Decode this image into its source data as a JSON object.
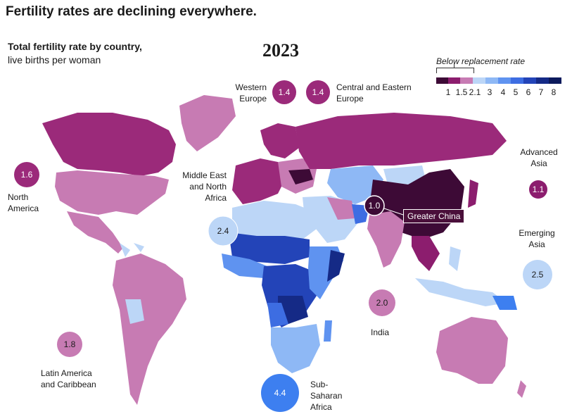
{
  "title": "Fertility rates are declining everywhere.",
  "subtitle_bold": "Total fertility rate by country,",
  "subtitle_regular": "live births per woman",
  "year": "2023",
  "legend": {
    "note": "Below replacement rate",
    "breaks": [
      "1",
      "1.5",
      "2.1",
      "3",
      "4",
      "5",
      "6",
      "7",
      "8"
    ],
    "colors": [
      "#3d0a36",
      "#8c1d6e",
      "#c77bb3",
      "#bcd6f7",
      "#8eb8f5",
      "#5f93f0",
      "#3d6de2",
      "#2344b8",
      "#152a86",
      "#0c1a5c"
    ]
  },
  "regions": [
    {
      "id": "north-america",
      "value": "1.6",
      "label": "North America",
      "color": "#9b2a7a"
    },
    {
      "id": "western-europe",
      "value": "1.4",
      "label": "Western Europe",
      "color": "#9b2a7a"
    },
    {
      "id": "central-eastern-europe",
      "value": "1.4",
      "label": "Central and Eastern Europe",
      "color": "#9b2a7a"
    },
    {
      "id": "advanced-asia",
      "value": "1.1",
      "label": "Advanced Asia",
      "color": "#8c1d6e"
    },
    {
      "id": "mena",
      "value": "2.4",
      "label": "Middle East and North Africa",
      "color": "#bcd6f7"
    },
    {
      "id": "greater-china",
      "value": "1.0",
      "label": "Greater China",
      "color": "#3d0a36"
    },
    {
      "id": "emerging-asia",
      "value": "2.5",
      "label": "Emerging Asia",
      "color": "#bcd6f7"
    },
    {
      "id": "india",
      "value": "2.0",
      "label": "India",
      "color": "#c77bb3"
    },
    {
      "id": "latam",
      "value": "1.8",
      "label": "Latin America and Caribbean",
      "color": "#c77bb3"
    },
    {
      "id": "ssa",
      "value": "4.4",
      "label": "Sub-Saharan Africa",
      "color": "#3d7ff0"
    }
  ]
}
